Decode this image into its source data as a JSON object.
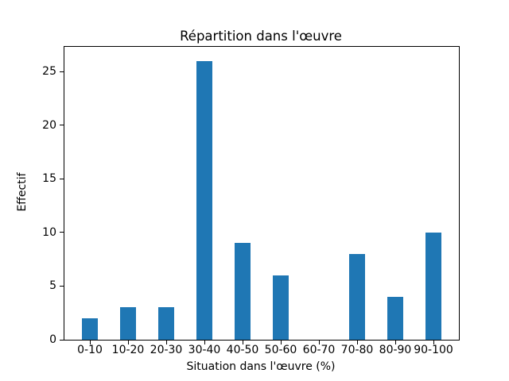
{
  "chart_data": {
    "type": "bar",
    "title": "Répartition dans l'œuvre",
    "xlabel": "Situation dans l'œuvre (%)",
    "ylabel": "Effectif",
    "categories": [
      "0-10",
      "10-20",
      "20-30",
      "30-40",
      "40-50",
      "50-60",
      "60-70",
      "70-80",
      "80-90",
      "90-100"
    ],
    "values": [
      2,
      3,
      3,
      26,
      9,
      6,
      0,
      8,
      4,
      10
    ],
    "yticks": [
      0,
      5,
      10,
      15,
      20,
      25
    ],
    "ylim": [
      0,
      27.3
    ],
    "bar_color": "#1f77b4",
    "background_color": "#ffffff",
    "spine_color": "#000000",
    "grid": false,
    "legend": null
  }
}
